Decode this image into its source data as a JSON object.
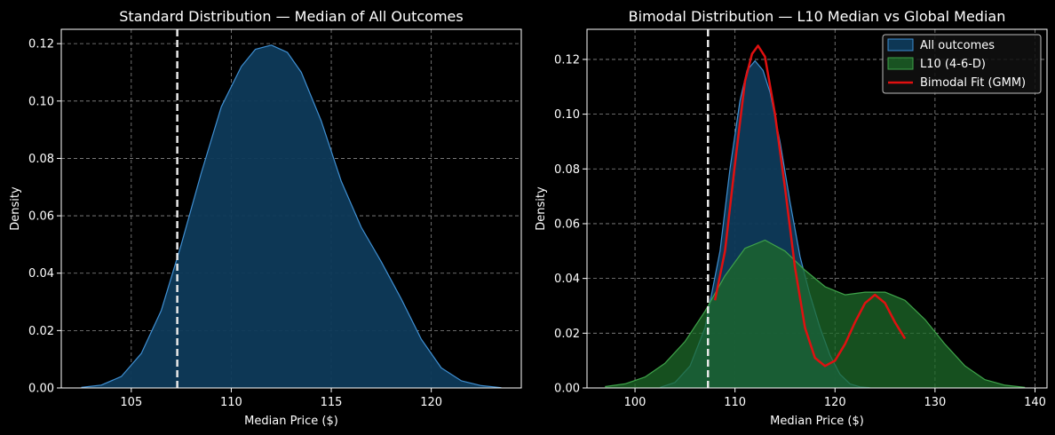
{
  "colors": {
    "background": "#000000",
    "all_outcomes_fill": "#0e3a5a",
    "all_outcomes_line": "#3f8fd2",
    "l10_fill": "#1e6b2a",
    "l10_line": "#3fa34a",
    "gmm_line": "#e01010",
    "median_line": "#e8e8e8"
  },
  "chart_data": [
    {
      "type": "area",
      "title": "Standard Distribution — Median of All Outcomes",
      "xlabel": "Median Price ($)",
      "ylabel": "Density",
      "xlim": [
        101.5,
        124.5
      ],
      "ylim": [
        0,
        0.125
      ],
      "xticks": [
        105,
        110,
        115,
        120
      ],
      "xtick_labels": [
        "105",
        "110",
        "115",
        "120"
      ],
      "yticks": [
        0,
        0.02,
        0.04,
        0.06,
        0.08,
        0.1,
        0.12
      ],
      "ytick_labels": [
        "0.00",
        "0.02",
        "0.04",
        "0.06",
        "0.08",
        "0.10",
        "0.12"
      ],
      "grid": true,
      "median_x": 107.3,
      "series": [
        {
          "name": "All outcomes",
          "x": [
            102.5,
            103.5,
            104.5,
            105.5,
            106.5,
            107.5,
            108.5,
            109.5,
            110.5,
            111.2,
            112,
            112.8,
            113.5,
            114.5,
            115.5,
            116.5,
            117.5,
            118.5,
            119.5,
            120.5,
            121.5,
            122.5,
            123.5
          ],
          "y": [
            0.0002,
            0.001,
            0.004,
            0.012,
            0.027,
            0.05,
            0.075,
            0.098,
            0.112,
            0.118,
            0.1195,
            0.117,
            0.11,
            0.093,
            0.072,
            0.056,
            0.044,
            0.031,
            0.017,
            0.007,
            0.0025,
            0.0008,
            0.0001
          ]
        }
      ]
    },
    {
      "type": "area",
      "title": "Bimodal Distribution — L10 Median vs Global Median",
      "xlabel": "Median Price ($)",
      "ylabel": "Density",
      "xlim": [
        95.2,
        141.2
      ],
      "ylim": [
        0,
        0.131
      ],
      "xticks": [
        100,
        110,
        120,
        130,
        140
      ],
      "xtick_labels": [
        "100",
        "110",
        "120",
        "130",
        "140"
      ],
      "yticks": [
        0,
        0.02,
        0.04,
        0.06,
        0.08,
        0.1,
        0.12
      ],
      "ytick_labels": [
        "0.00",
        "0.02",
        "0.04",
        "0.06",
        "0.08",
        "0.10",
        "0.12"
      ],
      "grid": true,
      "legend_position": "top-right",
      "legend": [
        "All outcomes",
        "L10 (4-6-D)",
        "Bimodal Fit (GMM)"
      ],
      "median_x": 107.3,
      "series": [
        {
          "name": "All outcomes",
          "x": [
            102.5,
            104,
            105.5,
            107,
            108.5,
            109.5,
            110.5,
            111.2,
            112,
            112.8,
            113.5,
            114.5,
            115.5,
            116.5,
            117.5,
            118.5,
            119.5,
            120.5,
            121.5,
            122.5,
            123.5
          ],
          "y": [
            0.0002,
            0.002,
            0.008,
            0.022,
            0.05,
            0.08,
            0.105,
            0.116,
            0.1195,
            0.116,
            0.108,
            0.09,
            0.068,
            0.048,
            0.034,
            0.022,
            0.012,
            0.005,
            0.0015,
            0.0004,
            0.0001
          ]
        },
        {
          "name": "L10 (4-6-D)",
          "x": [
            97,
            99,
            101,
            103,
            105,
            107,
            109,
            111,
            113,
            115,
            117,
            119,
            121,
            123,
            125,
            127,
            129,
            131,
            133,
            135,
            137,
            139
          ],
          "y": [
            0.0005,
            0.0015,
            0.004,
            0.009,
            0.017,
            0.028,
            0.041,
            0.051,
            0.054,
            0.05,
            0.043,
            0.037,
            0.034,
            0.035,
            0.035,
            0.032,
            0.025,
            0.016,
            0.008,
            0.003,
            0.001,
            0.0002
          ]
        },
        {
          "name": "Bimodal Fit (GMM)",
          "x": [
            108,
            109,
            110,
            111,
            111.7,
            112.3,
            113,
            114,
            115,
            116,
            117,
            118,
            119,
            120,
            121,
            122,
            123,
            124,
            125,
            126,
            127
          ],
          "y": [
            0.032,
            0.05,
            0.082,
            0.112,
            0.122,
            0.125,
            0.121,
            0.1,
            0.073,
            0.044,
            0.022,
            0.011,
            0.008,
            0.01,
            0.016,
            0.024,
            0.031,
            0.034,
            0.031,
            0.024,
            0.018
          ]
        }
      ]
    }
  ]
}
